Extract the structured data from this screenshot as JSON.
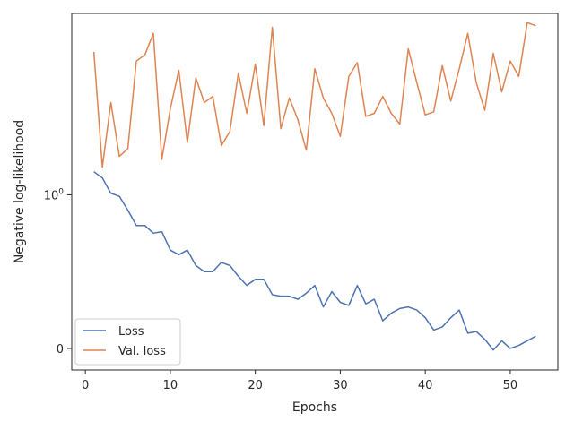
{
  "chart_data": {
    "type": "line",
    "xlabel": "Epochs",
    "ylabel": "Negative log-likelihood",
    "xlim": [
      -1.6,
      55.6
    ],
    "ylim": [
      -0.14,
      2.18
    ],
    "grid": false,
    "legend_position": "lower-left",
    "x_ticks": [
      {
        "value": 0,
        "label": "0"
      },
      {
        "value": 10,
        "label": "10"
      },
      {
        "value": 20,
        "label": "20"
      },
      {
        "value": 30,
        "label": "30"
      },
      {
        "value": 40,
        "label": "40"
      },
      {
        "value": 50,
        "label": "50"
      }
    ],
    "y_ticks": [
      {
        "value": 0,
        "label": "0"
      },
      {
        "value": 1,
        "label": "10",
        "sup": "0"
      }
    ],
    "x": [
      1,
      2,
      3,
      4,
      5,
      6,
      7,
      8,
      9,
      10,
      11,
      12,
      13,
      14,
      15,
      16,
      17,
      18,
      19,
      20,
      21,
      22,
      23,
      24,
      25,
      26,
      27,
      28,
      29,
      30,
      31,
      32,
      33,
      34,
      35,
      36,
      37,
      38,
      39,
      40,
      41,
      42,
      43,
      44,
      45,
      46,
      47,
      48,
      49,
      50,
      51,
      52,
      53
    ],
    "series": [
      {
        "name": "Loss",
        "color": "#4c72b0",
        "values": [
          1.15,
          1.11,
          1.01,
          0.99,
          0.9,
          0.8,
          0.8,
          0.75,
          0.76,
          0.64,
          0.61,
          0.64,
          0.54,
          0.5,
          0.5,
          0.56,
          0.54,
          0.47,
          0.41,
          0.45,
          0.45,
          0.35,
          0.34,
          0.34,
          0.32,
          0.36,
          0.41,
          0.27,
          0.37,
          0.3,
          0.28,
          0.41,
          0.29,
          0.32,
          0.18,
          0.23,
          0.26,
          0.27,
          0.25,
          0.2,
          0.12,
          0.14,
          0.2,
          0.25,
          0.1,
          0.11,
          0.06,
          -0.01,
          0.05,
          0.0,
          0.02,
          0.05,
          0.08
        ]
      },
      {
        "name": "Val. loss",
        "color": "#dd8452",
        "values": [
          1.93,
          1.18,
          1.6,
          1.25,
          1.3,
          1.87,
          1.91,
          2.05,
          1.23,
          1.56,
          1.81,
          1.34,
          1.76,
          1.6,
          1.64,
          1.32,
          1.41,
          1.79,
          1.53,
          1.85,
          1.45,
          2.09,
          1.43,
          1.63,
          1.49,
          1.29,
          1.82,
          1.63,
          1.53,
          1.38,
          1.77,
          1.86,
          1.51,
          1.53,
          1.64,
          1.53,
          1.46,
          1.95,
          1.73,
          1.52,
          1.54,
          1.84,
          1.61,
          1.82,
          2.05,
          1.73,
          1.55,
          1.92,
          1.67,
          1.87,
          1.77,
          2.12,
          2.1
        ]
      }
    ]
  }
}
